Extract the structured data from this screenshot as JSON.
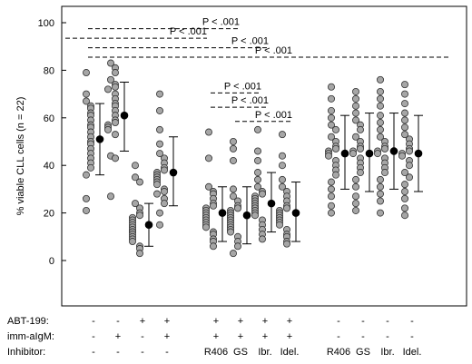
{
  "chart_data": {
    "type": "scatter",
    "ylabel": "% viable CLL cells (n = 22)",
    "ylim": [
      0,
      100
    ],
    "yticks": [
      "0",
      "20",
      "40",
      "60",
      "80",
      "100"
    ],
    "colors": {
      "points": "#a6a6a6",
      "mean": "#000000",
      "axis": "#000000"
    },
    "row_labels": [
      "ABT-199:",
      "imm-aIgM:",
      "Inhibitor:"
    ],
    "groups": [
      {
        "abt": "-",
        "igm": "-",
        "inhibitor": "-",
        "mean": 51,
        "sd_low": 36,
        "sd_high": 66,
        "values": [
          79,
          70,
          67,
          65,
          64,
          62,
          61,
          59,
          57,
          56,
          54,
          52,
          50,
          49,
          47,
          45,
          43,
          41,
          39,
          36,
          26,
          21
        ]
      },
      {
        "abt": "-",
        "igm": "+",
        "inhibitor": "-",
        "mean": 61,
        "sd_low": 46,
        "sd_high": 75,
        "values": [
          83,
          81,
          79,
          76,
          74,
          73,
          72,
          70,
          68,
          66,
          65,
          63,
          61,
          59,
          58,
          57,
          56,
          55,
          53,
          44,
          43,
          27
        ]
      },
      {
        "abt": "+",
        "igm": "-",
        "inhibitor": "-",
        "mean": 15,
        "sd_low": 6,
        "sd_high": 24,
        "values": [
          40,
          35,
          33,
          24,
          22,
          20,
          19,
          18,
          17,
          16,
          15,
          14,
          13,
          12,
          12,
          11,
          10,
          9,
          8,
          6,
          5,
          3
        ]
      },
      {
        "abt": "+",
        "igm": "+",
        "inhibitor": "-",
        "mean": 37,
        "sd_low": 23,
        "sd_high": 52,
        "values": [
          70,
          63,
          55,
          49,
          45,
          43,
          41,
          39,
          38,
          37,
          36,
          35,
          34,
          33,
          32,
          30,
          29,
          28,
          26,
          24,
          20,
          15
        ]
      },
      {
        "abt": "+",
        "igm": "+",
        "inhibitor": "R406",
        "mean": 20,
        "sd_low": 8,
        "sd_high": 31,
        "values": [
          54,
          43,
          31,
          29,
          28,
          26,
          24,
          23,
          22,
          21,
          20,
          19,
          18,
          17,
          16,
          15,
          14,
          12,
          11,
          9,
          8,
          6
        ]
      },
      {
        "abt": "+",
        "igm": "+",
        "inhibitor": "GS",
        "mean": 19,
        "sd_low": 7,
        "sd_high": 31,
        "values": [
          50,
          47,
          42,
          30,
          27,
          25,
          23,
          22,
          21,
          20,
          19,
          18,
          17,
          16,
          15,
          14,
          13,
          12,
          10,
          8,
          6,
          3
        ]
      },
      {
        "abt": "+",
        "igm": "+",
        "inhibitor": "Ibr.",
        "mean": 24,
        "sd_low": 12,
        "sd_high": 37,
        "values": [
          55,
          46,
          42,
          37,
          34,
          31,
          29,
          28,
          27,
          26,
          25,
          24,
          23,
          22,
          21,
          20,
          19,
          17,
          15,
          13,
          11,
          9
        ]
      },
      {
        "abt": "+",
        "igm": "+",
        "inhibitor": "Idel.",
        "mean": 20,
        "sd_low": 8,
        "sd_high": 33,
        "values": [
          53,
          44,
          40,
          34,
          31,
          29,
          27,
          25,
          23,
          22,
          21,
          20,
          19,
          18,
          17,
          16,
          15,
          13,
          11,
          10,
          8,
          7
        ]
      },
      {
        "abt": "-",
        "igm": "-",
        "inhibitor": "R406",
        "mean": 45,
        "sd_low": 30,
        "sd_high": 61,
        "values": [
          73,
          68,
          63,
          60,
          57,
          55,
          52,
          50,
          48,
          47,
          46,
          45,
          44,
          42,
          40,
          38,
          36,
          33,
          30,
          27,
          23,
          20
        ]
      },
      {
        "abt": "-",
        "igm": "-",
        "inhibitor": "GS",
        "mean": 45,
        "sd_low": 29,
        "sd_high": 62,
        "values": [
          71,
          68,
          65,
          62,
          59,
          57,
          55,
          52,
          50,
          48,
          47,
          46,
          45,
          43,
          41,
          39,
          37,
          34,
          31,
          27,
          24,
          21
        ]
      },
      {
        "abt": "-",
        "igm": "-",
        "inhibitor": "Ibr.",
        "mean": 46,
        "sd_low": 30,
        "sd_high": 62,
        "values": [
          76,
          71,
          68,
          65,
          61,
          58,
          55,
          52,
          50,
          48,
          47,
          46,
          45,
          43,
          41,
          39,
          37,
          34,
          31,
          28,
          25,
          20
        ]
      },
      {
        "abt": "-",
        "igm": "-",
        "inhibitor": "Idel.",
        "mean": 45,
        "sd_low": 29,
        "sd_high": 61,
        "values": [
          74,
          70,
          66,
          62,
          59,
          56,
          53,
          51,
          49,
          47,
          46,
          45,
          44,
          42,
          40,
          37,
          35,
          32,
          29,
          26,
          22,
          19
        ]
      }
    ],
    "significance": [
      {
        "label": "P < .001",
        "from": 0,
        "to": 3,
        "y": 99
      },
      {
        "label": "P < .001",
        "from": 1,
        "to": 3,
        "y": 95
      },
      {
        "label": "P < .001",
        "from": 0,
        "to": 3,
        "y": 91
      },
      {
        "label": "P < .001",
        "from": 0,
        "to": 3,
        "y": 87
      },
      {
        "label": "P < .001",
        "from": 4,
        "to": 6,
        "y": 72
      },
      {
        "label": "P < .001",
        "from": 4,
        "to": 6,
        "y": 66
      },
      {
        "label": "P < .001",
        "from": 5,
        "to": 7,
        "y": 60
      }
    ]
  }
}
